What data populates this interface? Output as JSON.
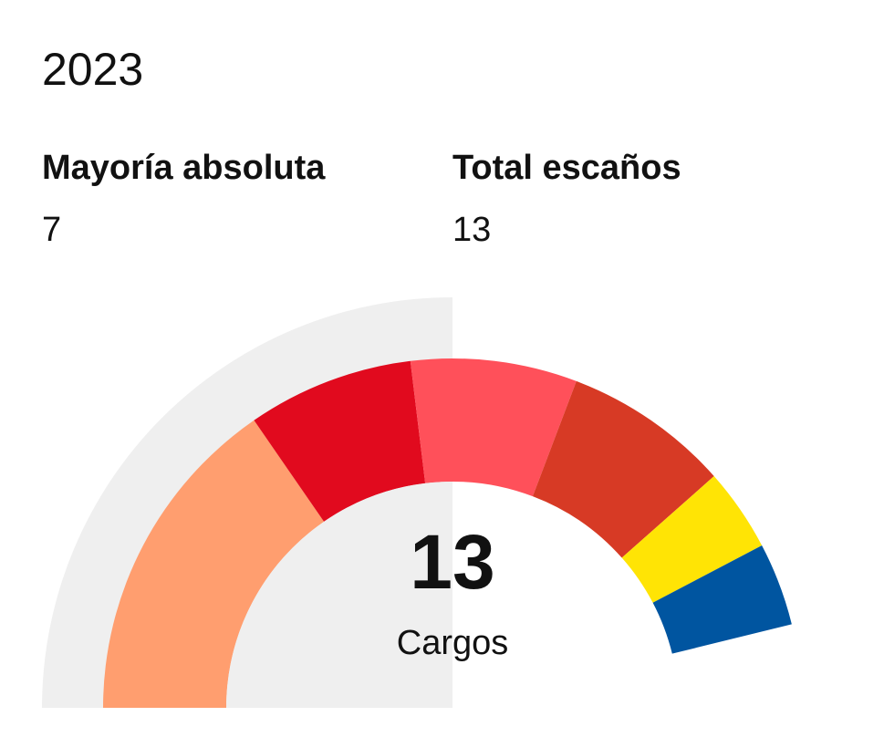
{
  "header": {
    "year": "2023"
  },
  "stats": {
    "majority_label": "Mayoría absoluta",
    "majority_value": "7",
    "total_label": "Total escaños",
    "total_value": "13"
  },
  "center": {
    "value": "13",
    "label": "Cargos"
  },
  "chart_data": {
    "type": "pie",
    "title": "",
    "total": 13,
    "series": [
      {
        "value": 4,
        "color": "#FF9E6F"
      },
      {
        "value": 2,
        "color": "#E10A1E"
      },
      {
        "value": 2,
        "color": "#FF505A"
      },
      {
        "value": 2,
        "color": "#D73A25"
      },
      {
        "value": 1,
        "color": "#FFE405"
      },
      {
        "value": 1,
        "color": "#0055A0"
      }
    ],
    "majority_marker": 7,
    "background_color": "#EFEFEF"
  }
}
